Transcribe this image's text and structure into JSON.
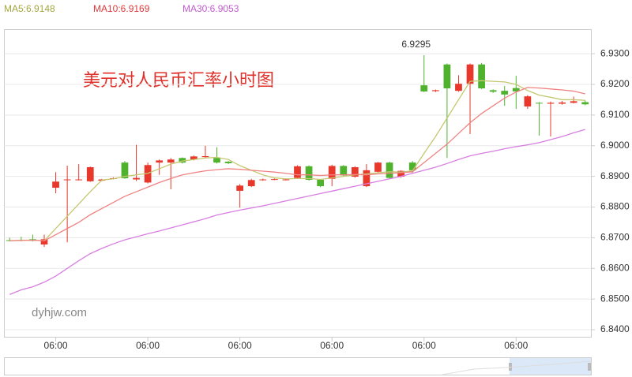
{
  "chart_data": {
    "type": "candlestick",
    "title": "美元对人民币汇率小时图",
    "watermark": "dyhjw.com",
    "categories": [
      null,
      null,
      null,
      null,
      "06:00",
      null,
      null,
      null,
      null,
      null,
      null,
      null,
      "06:00",
      null,
      null,
      null,
      null,
      null,
      null,
      null,
      "06:00",
      null,
      null,
      null,
      null,
      null,
      null,
      null,
      "06:00",
      null,
      null,
      null,
      null,
      null,
      null,
      null,
      "06:00",
      null,
      null,
      null,
      null,
      null,
      null,
      null,
      "06:00",
      null,
      null,
      null,
      null,
      null,
      null
    ],
    "series": [
      {
        "up_color": "#e8372b",
        "down_color": "#4fb22d",
        "open": [
          6.8692,
          6.8693,
          6.8695,
          6.8678,
          6.8863,
          6.8888,
          6.8889,
          6.8884,
          6.8886,
          6.8892,
          6.8945,
          6.889,
          6.888,
          6.8945,
          6.8945,
          6.896,
          6.8955,
          6.8963,
          6.896,
          6.8948,
          6.8853,
          6.8868,
          6.8888,
          6.889,
          6.8889,
          6.8895,
          6.8933,
          6.8889,
          6.8892,
          6.8934,
          6.8899,
          6.8868,
          6.8915,
          6.8945,
          6.8899,
          6.8945,
          6.9197,
          6.9178,
          6.9265,
          6.9179,
          6.9202,
          6.9265,
          6.9181,
          6.9179,
          6.9188,
          6.9128,
          6.914,
          6.9137,
          6.9137,
          6.914,
          6.9142
        ],
        "close": [
          6.869,
          6.8692,
          6.869,
          6.8695,
          6.8883,
          6.889,
          6.889,
          6.893,
          6.889,
          6.8894,
          6.8894,
          6.8895,
          6.8937,
          6.8952,
          6.8955,
          6.8945,
          6.8965,
          6.8966,
          6.8945,
          6.8943,
          6.887,
          6.8888,
          6.889,
          6.8891,
          6.889,
          6.8933,
          6.8889,
          6.8868,
          6.8934,
          6.8903,
          6.893,
          6.892,
          6.8945,
          6.8895,
          6.8918,
          6.892,
          6.9177,
          6.9181,
          6.9187,
          6.9202,
          6.9265,
          6.9187,
          6.9176,
          6.9167,
          6.9177,
          6.9161,
          6.9138,
          6.914,
          6.9141,
          6.9145,
          6.9135
        ],
        "high": [
          6.87,
          6.8703,
          6.871,
          6.871,
          6.8914,
          6.8935,
          6.894,
          6.8932,
          6.8892,
          6.8897,
          6.895,
          6.9003,
          6.8945,
          6.8955,
          6.896,
          6.8962,
          6.8968,
          6.9,
          6.8995,
          6.895,
          6.8875,
          6.8892,
          6.8893,
          6.8893,
          6.8892,
          6.8936,
          6.8936,
          6.8891,
          6.8938,
          6.8937,
          6.8933,
          6.894,
          6.8947,
          6.8948,
          6.892,
          6.895,
          6.9295,
          6.9183,
          6.9268,
          6.923,
          6.9268,
          6.927,
          6.9184,
          6.9195,
          6.9228,
          6.9165,
          6.9142,
          6.9144,
          6.9146,
          6.916,
          6.9148
        ],
        "low": [
          6.8688,
          6.8688,
          6.8688,
          6.867,
          6.8845,
          6.8685,
          6.8887,
          6.8882,
          6.8884,
          6.889,
          6.8892,
          6.8885,
          6.8877,
          6.8905,
          6.8858,
          6.8942,
          6.8952,
          6.8961,
          6.8942,
          6.894,
          6.8798,
          6.8865,
          6.8886,
          6.8888,
          6.8887,
          6.8892,
          6.8886,
          6.8865,
          6.8868,
          6.89,
          6.8896,
          6.8865,
          6.8912,
          6.8892,
          6.8896,
          6.891,
          6.9175,
          6.9175,
          6.896,
          6.9176,
          6.9038,
          6.9185,
          6.9172,
          6.913,
          6.912,
          6.912,
          6.9033,
          6.903,
          6.9134,
          6.9138,
          6.9132
        ]
      }
    ],
    "lines": [
      {
        "name": "MA5:6.9148",
        "color": "#c4c870",
        "label_color": "#a3a640",
        "values": [
          6.869,
          6.8692,
          6.8692,
          6.869,
          6.873,
          6.877,
          6.881,
          6.885,
          6.8888,
          6.8892,
          6.89,
          6.8905,
          6.891,
          6.8925,
          6.894,
          6.895,
          6.8955,
          6.896,
          6.8962,
          6.8955,
          6.8935,
          6.892,
          6.8905,
          6.8895,
          6.8892,
          6.8893,
          6.8893,
          6.889,
          6.8895,
          6.89,
          6.8905,
          6.8908,
          6.8912,
          6.8915,
          6.8914,
          6.8918,
          6.8975,
          6.903,
          6.909,
          6.915,
          6.921,
          6.9212,
          6.921,
          6.9208,
          6.92,
          6.918,
          6.9165,
          6.9158,
          6.915,
          6.915,
          6.9148
        ]
      },
      {
        "name": "MA10:6.9169",
        "color": "#f08282",
        "label_color": "#e0393a",
        "values": [
          6.869,
          6.8691,
          6.8692,
          6.869,
          6.871,
          6.873,
          6.875,
          6.8775,
          6.8795,
          6.8815,
          6.8835,
          6.885,
          6.8865,
          6.888,
          6.8893,
          6.8905,
          6.8912,
          6.8918,
          6.8922,
          6.8925,
          6.8923,
          6.892,
          6.8917,
          6.8914,
          6.891,
          6.8905,
          6.8905,
          6.8903,
          6.8905,
          6.8905,
          6.8906,
          6.8905,
          6.8908,
          6.891,
          6.8912,
          6.8915,
          6.8945,
          6.8975,
          6.9005,
          6.904,
          6.9075,
          6.9105,
          6.913,
          6.9155,
          6.9175,
          6.919,
          6.9188,
          6.9185,
          6.9182,
          6.9178,
          6.9169
        ]
      },
      {
        "name": "MA30:6.9053",
        "color": "#d77fe0",
        "label_color": "#c05ccc",
        "values": [
          6.8515,
          6.853,
          6.854,
          6.8555,
          6.8575,
          6.86,
          6.8625,
          6.8648,
          6.8665,
          6.868,
          6.8693,
          6.8703,
          6.8713,
          6.8722,
          6.8732,
          6.8742,
          6.8752,
          6.8762,
          6.8774,
          6.8782,
          6.879,
          6.8797,
          6.8804,
          6.8812,
          6.882,
          6.8828,
          6.8836,
          6.8844,
          6.8852,
          6.886,
          6.8868,
          6.8876,
          6.8884,
          6.8892,
          6.89,
          6.891,
          6.892,
          6.893,
          6.8942,
          6.8955,
          6.8967,
          6.8975,
          6.8982,
          6.899,
          6.8997,
          6.9003,
          6.901,
          6.902,
          6.903,
          6.9042,
          6.9053
        ]
      }
    ],
    "ylim": [
      6.8377,
      6.938
    ],
    "yticks": [
      {
        "value": 6.84,
        "label": "6.8400"
      },
      {
        "value": 6.85,
        "label": "6.8500"
      },
      {
        "value": 6.86,
        "label": "6.8600"
      },
      {
        "value": 6.87,
        "label": "6.8700"
      },
      {
        "value": 6.88,
        "label": "6.8800"
      },
      {
        "value": 6.89,
        "label": "6.8900"
      },
      {
        "value": 6.9,
        "label": "6.9000"
      },
      {
        "value": 6.91,
        "label": "6.9100"
      },
      {
        "value": 6.92,
        "label": "6.9200"
      },
      {
        "value": 6.93,
        "label": "6.9300"
      }
    ],
    "grid": true
  }
}
